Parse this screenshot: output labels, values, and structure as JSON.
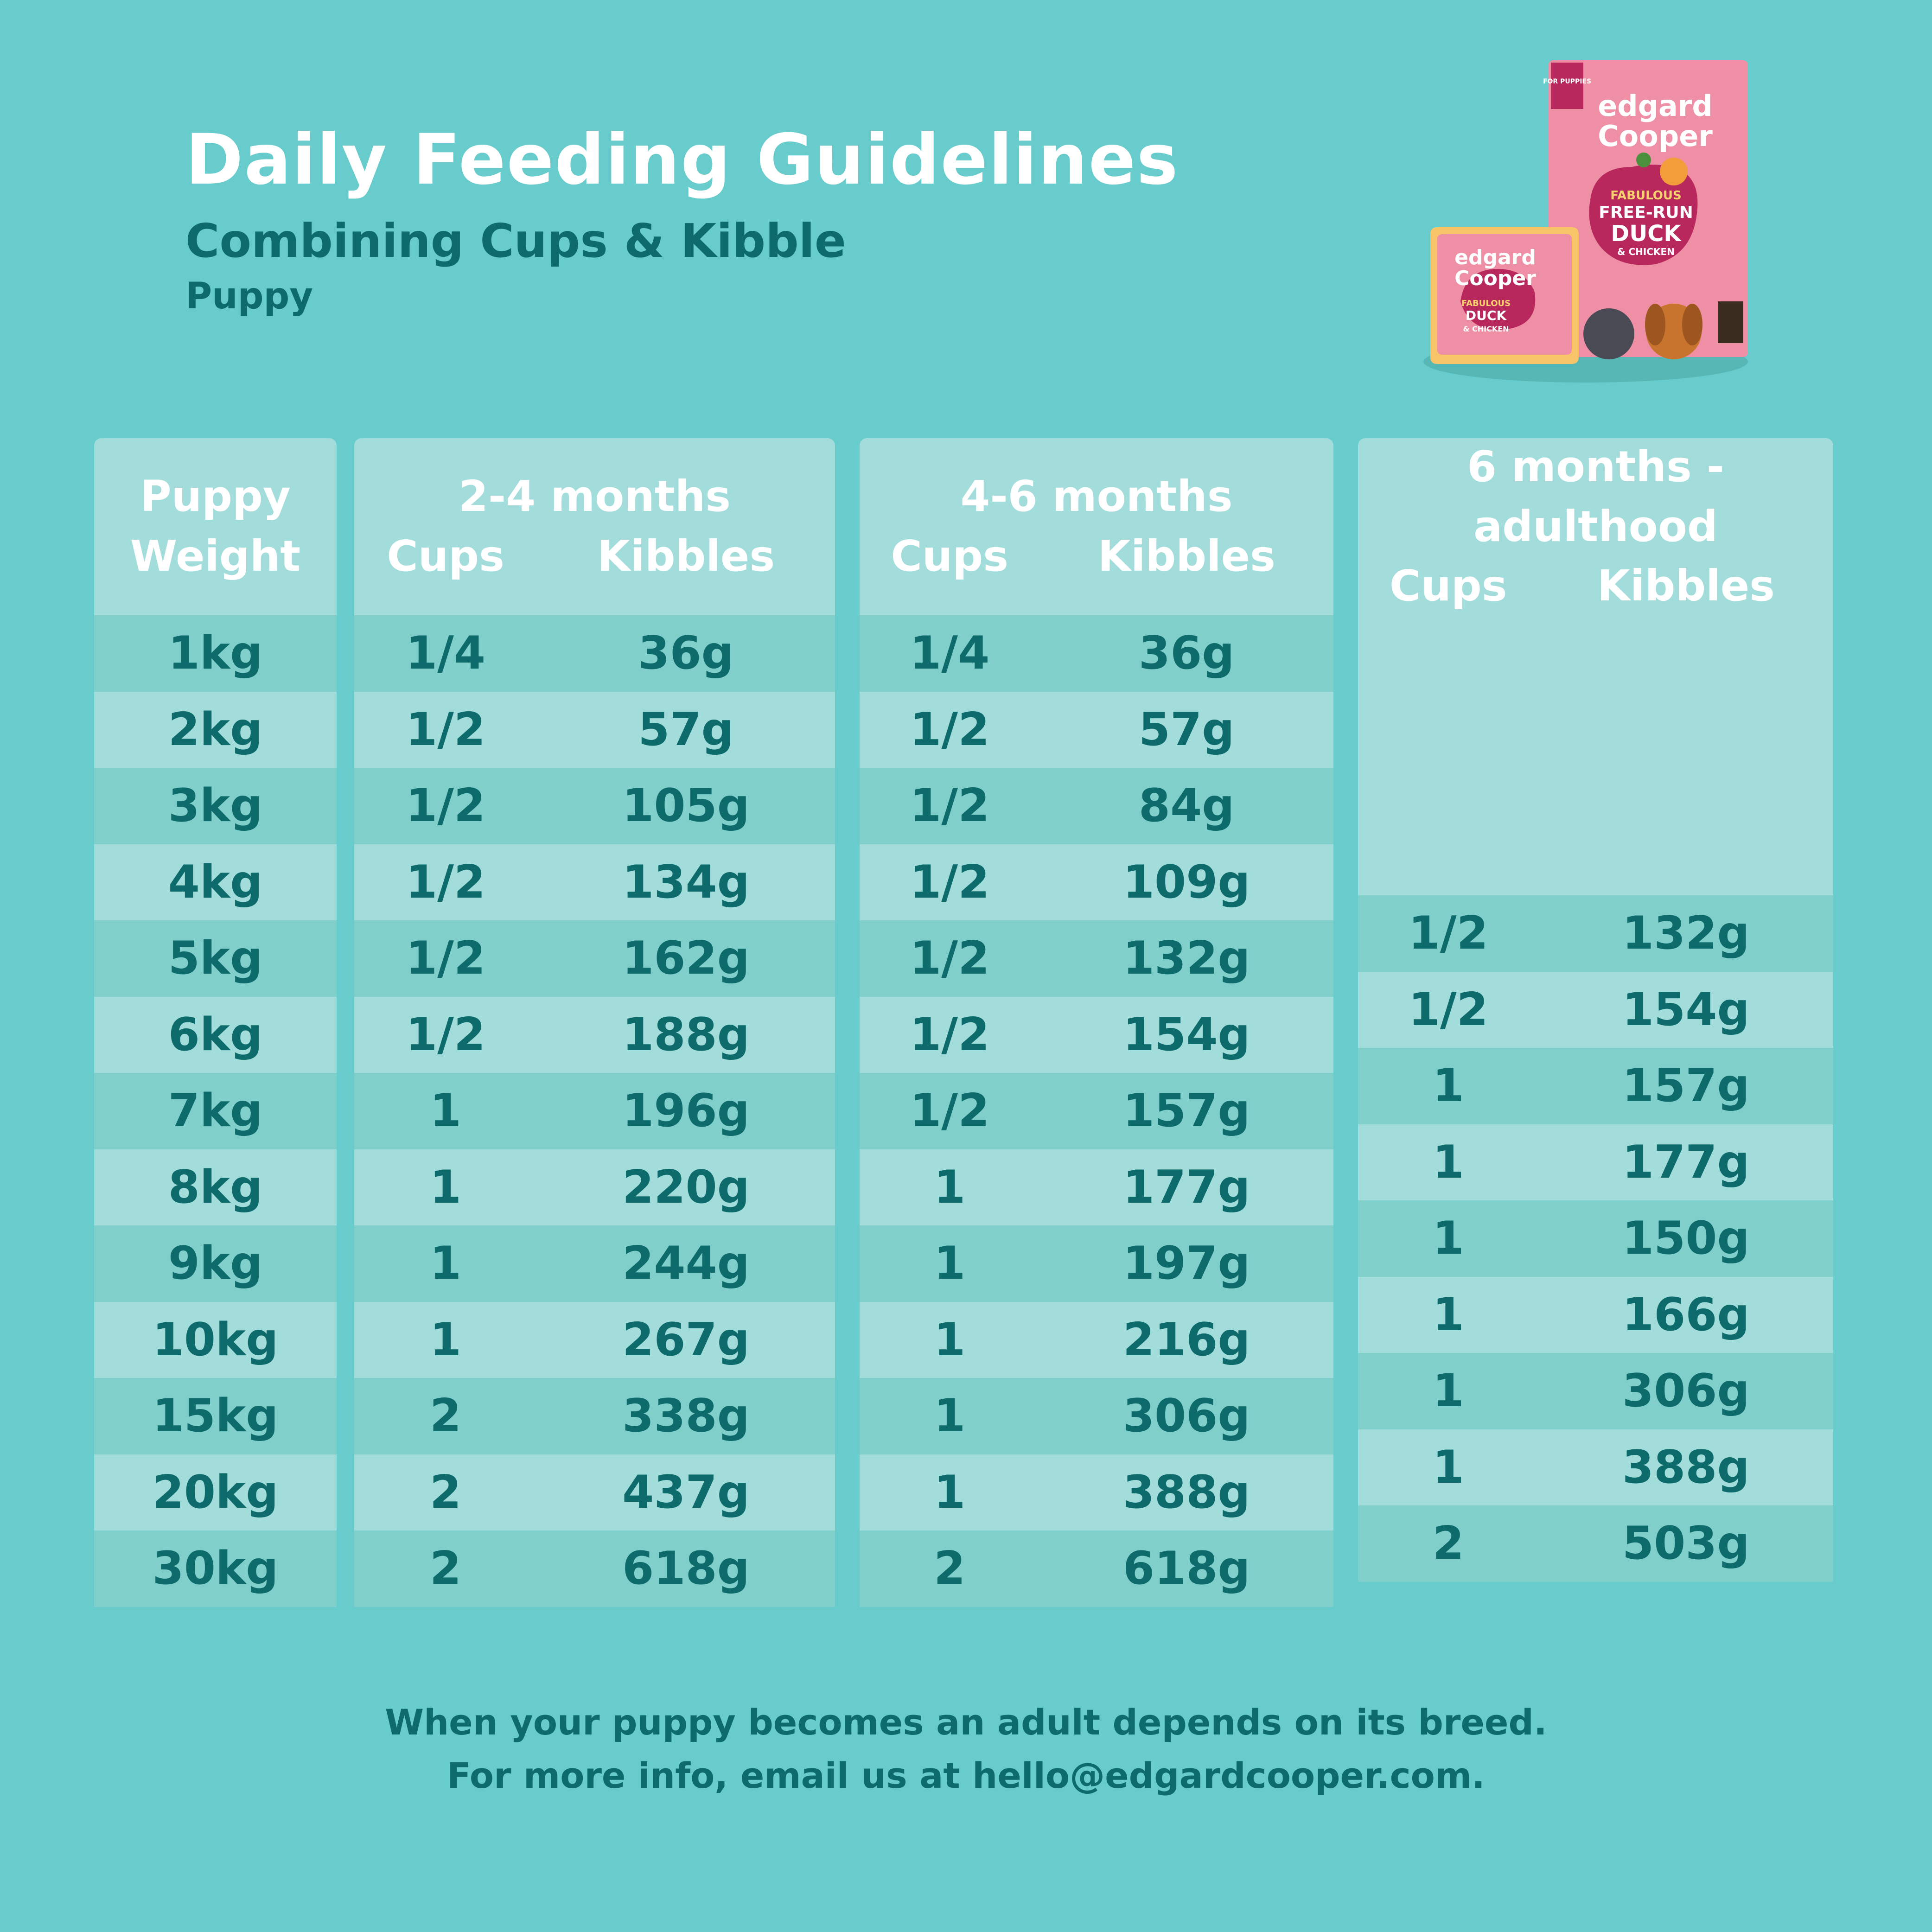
{
  "header": {
    "title": "Daily Feeding Guidelines",
    "subtitle": "Combining Cups & Kibble",
    "category": "Puppy"
  },
  "product": {
    "bag_tag": "FOR PUPPIES",
    "bag_brand_top": "edgard",
    "bag_brand_bottom": "Cooper",
    "bag_line1": "FABULOUS",
    "bag_line2": "FREE-RUN",
    "bag_line3": "DUCK",
    "bag_line4": "& CHICKEN",
    "tray_line1": "FABULOUS",
    "tray_line2": "DUCK",
    "tray_line3": "& CHICKEN",
    "colors": {
      "bag": "#ee8fa6",
      "label": "#b8285c",
      "tray": "#f7c46a"
    }
  },
  "table": {
    "weight_header_line1": "Puppy",
    "weight_header_line2": "Weight",
    "cups_label": "Cups",
    "kibbles_label": "Kibbles",
    "weights": [
      "1kg",
      "2kg",
      "3kg",
      "4kg",
      "5kg",
      "6kg",
      "7kg",
      "8kg",
      "9kg",
      "10kg",
      "15kg",
      "20kg",
      "30kg"
    ],
    "groups": [
      {
        "title": "2-4 months",
        "rows": [
          {
            "cups": "1/4",
            "kibbles": "36g"
          },
          {
            "cups": "1/2",
            "kibbles": "57g"
          },
          {
            "cups": "1/2",
            "kibbles": "105g"
          },
          {
            "cups": "1/2",
            "kibbles": "134g"
          },
          {
            "cups": "1/2",
            "kibbles": "162g"
          },
          {
            "cups": "1/2",
            "kibbles": "188g"
          },
          {
            "cups": "1",
            "kibbles": "196g"
          },
          {
            "cups": "1",
            "kibbles": "220g"
          },
          {
            "cups": "1",
            "kibbles": "244g"
          },
          {
            "cups": "1",
            "kibbles": "267g"
          },
          {
            "cups": "2",
            "kibbles": "338g"
          },
          {
            "cups": "2",
            "kibbles": "437g"
          },
          {
            "cups": "2",
            "kibbles": "618g"
          }
        ]
      },
      {
        "title": "4-6 months",
        "rows": [
          {
            "cups": "1/4",
            "kibbles": "36g"
          },
          {
            "cups": "1/2",
            "kibbles": "57g"
          },
          {
            "cups": "1/2",
            "kibbles": "84g"
          },
          {
            "cups": "1/2",
            "kibbles": "109g"
          },
          {
            "cups": "1/2",
            "kibbles": "132g"
          },
          {
            "cups": "1/2",
            "kibbles": "154g"
          },
          {
            "cups": "1/2",
            "kibbles": "157g"
          },
          {
            "cups": "1",
            "kibbles": "177g"
          },
          {
            "cups": "1",
            "kibbles": "197g"
          },
          {
            "cups": "1",
            "kibbles": "216g"
          },
          {
            "cups": "1",
            "kibbles": "306g"
          },
          {
            "cups": "1",
            "kibbles": "388g"
          },
          {
            "cups": "2",
            "kibbles": "618g"
          }
        ]
      },
      {
        "title": "6 months - adulthood",
        "rows": [
          {
            "cups": "1/2",
            "kibbles": "132g"
          },
          {
            "cups": "1/2",
            "kibbles": "154g"
          },
          {
            "cups": "1",
            "kibbles": "157g"
          },
          {
            "cups": "1",
            "kibbles": "177g"
          },
          {
            "cups": "1",
            "kibbles": "150g"
          },
          {
            "cups": "1",
            "kibbles": "166g"
          },
          {
            "cups": "1",
            "kibbles": "306g"
          },
          {
            "cups": "1",
            "kibbles": "388g"
          },
          {
            "cups": "2",
            "kibbles": "503g"
          }
        ]
      }
    ]
  },
  "footer": {
    "line1": "When your puppy becomes an adult depends on its breed.",
    "line2": "For more info, email us at hello@edgardcooper.com."
  },
  "colors": {
    "background": "#67cccb",
    "row_dark": "#80cfcb",
    "row_light": "#a2dcdb",
    "text_dark": "#0d6b6b",
    "text_light": "#ffffff"
  }
}
